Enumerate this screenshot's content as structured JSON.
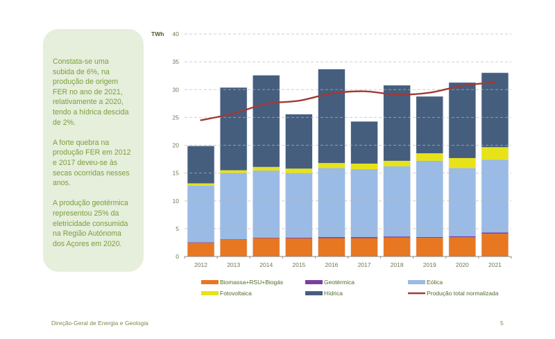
{
  "panel": {
    "paragraphs": [
      "Constata-se uma subida de 6%, na produção de origem FER no ano de 2021, relativamente a 2020, tendo a hídrica descida de 2%.",
      "A forte quebra na produção FER em 2012 e 2017 deveu-se às secas  ocorridas nesses anos.",
      "A produção geotérmica representou 25% da eletricidade consumida na Região Autónoma dos Açores em 2020."
    ],
    "lines": [
      [
        "Constata-se uma",
        "subida de 6%, na",
        "produção de origem",
        "FER no ano de 2021,",
        "relativamente a 2020,",
        "tendo a hídrica descida",
        "de 2%."
      ],
      [
        "A forte quebra na",
        "produção FER em 2012",
        "e 2017 deveu-se às",
        "secas  ocorridas nesses",
        "anos."
      ],
      [
        "A produção geotérmica",
        "representou 25% da",
        "eletricidade consumida",
        "na Região Autónoma",
        "dos Açores em 2020."
      ]
    ]
  },
  "footer": {
    "left": "Direção-Geral de Energia e Geologia",
    "page_number": "5"
  },
  "chart_data": {
    "type": "bar",
    "stacked": true,
    "title": "",
    "xlabel": "",
    "ylabel": "TWh",
    "ylim": [
      0,
      40
    ],
    "yticks": [
      0,
      5,
      10,
      15,
      20,
      25,
      30,
      35,
      40
    ],
    "grid": true,
    "legend_position": "bottom",
    "categories": [
      "2012",
      "2013",
      "2014",
      "2015",
      "2016",
      "2017",
      "2018",
      "2019",
      "2020",
      "2021"
    ],
    "series": [
      {
        "name": "Biomassa+RSU+Biogás",
        "color": "#e87722",
        "values": [
          2.45,
          3.0,
          3.3,
          3.25,
          3.3,
          3.3,
          3.4,
          3.35,
          3.45,
          4.1
        ]
      },
      {
        "name": "Geotérmica",
        "color": "#7b3fa0",
        "values": [
          0.1,
          0.1,
          0.1,
          0.15,
          0.2,
          0.2,
          0.2,
          0.15,
          0.2,
          0.2
        ]
      },
      {
        "name": "Eólica",
        "color": "#9abbe5",
        "values": [
          10.2,
          11.9,
          12.05,
          11.55,
          12.4,
          12.2,
          12.6,
          13.7,
          12.25,
          13.1
        ]
      },
      {
        "name": "Fotovoltaica",
        "color": "#e8e21a",
        "values": [
          0.4,
          0.5,
          0.65,
          0.85,
          0.9,
          1.0,
          1.0,
          1.35,
          1.8,
          2.25
        ]
      },
      {
        "name": "Hídrica",
        "color": "#455e7e",
        "values": [
          6.75,
          14.9,
          16.5,
          9.8,
          16.9,
          7.6,
          13.6,
          10.25,
          13.6,
          13.4
        ]
      }
    ],
    "line_series": {
      "name": "Produção total normalizada",
      "type": "line",
      "color": "#a23a35",
      "values": [
        24.5,
        25.7,
        27.45,
        28.0,
        29.3,
        29.7,
        29.1,
        29.45,
        30.7,
        31.3
      ]
    },
    "legend": [
      {
        "label": "Biomassa+RSU+Biogás",
        "color": "#e87722",
        "kind": "bar"
      },
      {
        "label": "Geotérmica",
        "color": "#7b3fa0",
        "kind": "bar"
      },
      {
        "label": "Eólica",
        "color": "#9abbe5",
        "kind": "bar"
      },
      {
        "label": "Fotovoltaica",
        "color": "#e8e21a",
        "kind": "bar"
      },
      {
        "label": "Hídrica",
        "color": "#455e7e",
        "kind": "bar"
      },
      {
        "label": "Produção total normalizada",
        "color": "#a23a35",
        "kind": "line"
      }
    ]
  }
}
